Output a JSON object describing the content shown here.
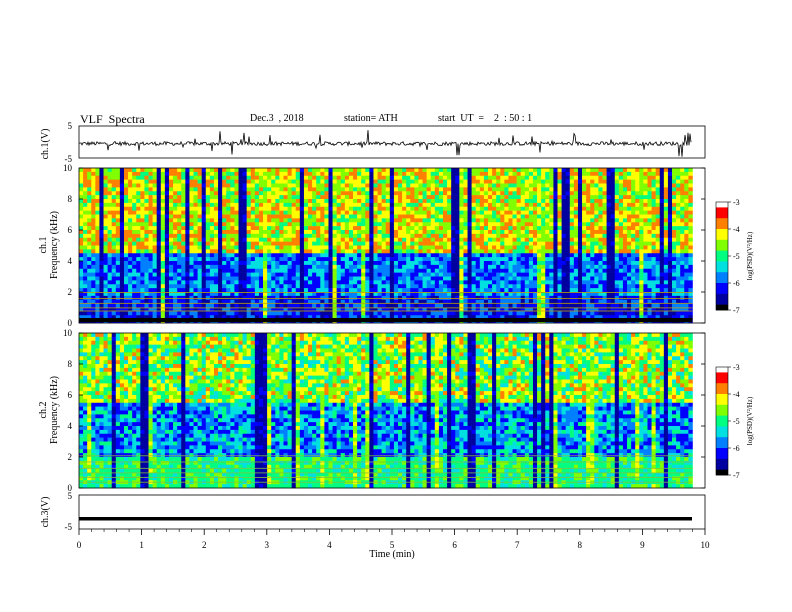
{
  "header": {
    "title": "VLF  Spectra",
    "date": "Dec.3  , 2018",
    "station": "station= ATH",
    "start": "start  UT  =    2  : 50 : 1"
  },
  "colors": {
    "colormap": [
      "#000000",
      "#0000a0",
      "#0000ff",
      "#0080ff",
      "#00e0e0",
      "#00ff80",
      "#80ff00",
      "#ffff00",
      "#ff8000",
      "#ff0000",
      "#ffffff"
    ]
  },
  "chart_data": [
    {
      "type": "line",
      "name": "ch1-waveform",
      "ylabel": "ch.1(V)",
      "ylim": [
        -5,
        5
      ],
      "yticks": [
        "5",
        "-5"
      ],
      "xlim": [
        0,
        10
      ],
      "note_level": "mean about -0.5, fluctuating with spikes"
    },
    {
      "type": "heatmap",
      "name": "ch1-spectrogram",
      "ylabel": "Frequency  (kHz)",
      "ylabel2": "ch.1",
      "ylim": [
        0,
        10
      ],
      "yticks": [
        "0",
        "2",
        "4",
        "6",
        "8",
        "10"
      ],
      "xlim": [
        0,
        9.8
      ],
      "colorbar": {
        "label": "log(PSD)(V²/Hz)",
        "range": [
          -7,
          -3
        ],
        "ticks": [
          "-3",
          "-4",
          "-5",
          "-6",
          "-7"
        ]
      }
    },
    {
      "type": "heatmap",
      "name": "ch2-spectrogram",
      "ylabel": "Frequency  (kHz)",
      "ylabel2": "ch.2",
      "ylim": [
        0,
        10
      ],
      "yticks": [
        "0",
        "2",
        "4",
        "6",
        "8",
        "10"
      ],
      "xlim": [
        0,
        9.8
      ],
      "colorbar": {
        "label": "log(PSD)(V²/Hz)",
        "range": [
          -7,
          -3
        ],
        "ticks": [
          "-3",
          "-4",
          "-5",
          "-6",
          "-7"
        ]
      }
    },
    {
      "type": "line",
      "name": "ch3-waveform",
      "ylabel": "ch.3(V)",
      "ylim": [
        -5,
        5
      ],
      "yticks": [
        "5",
        "-5"
      ],
      "xlim": [
        0,
        10
      ],
      "level": -2
    }
  ],
  "x_axis": {
    "label": "Time  (min)",
    "ticks": [
      "0",
      "1",
      "2",
      "3",
      "4",
      "5",
      "6",
      "7",
      "8",
      "9",
      "10"
    ]
  }
}
